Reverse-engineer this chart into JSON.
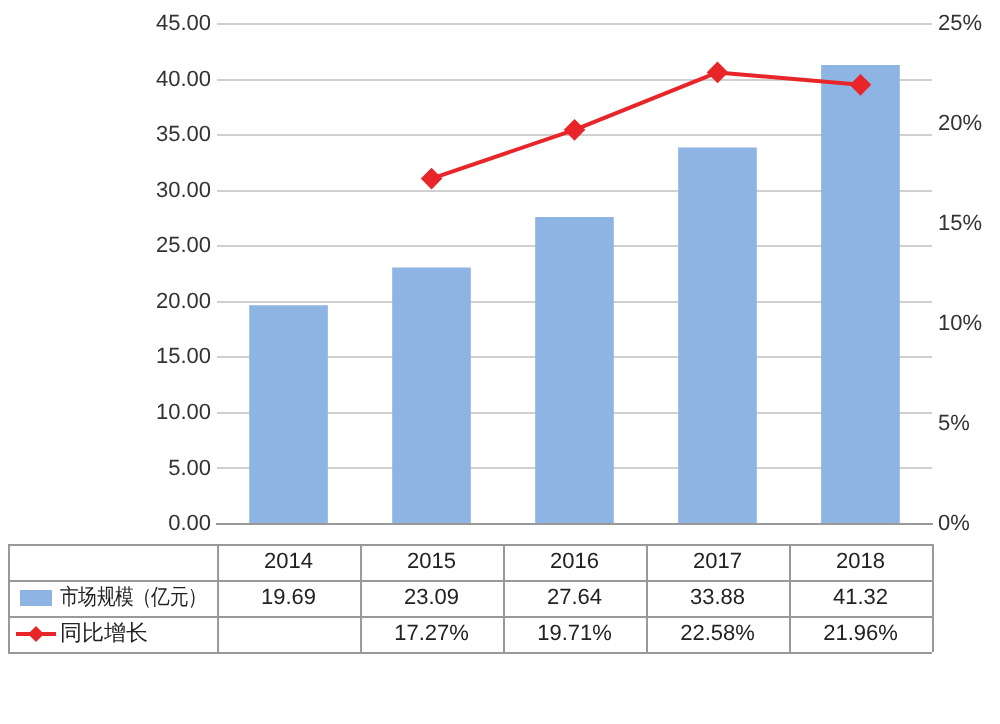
{
  "chart_data": {
    "type": "bar",
    "categories": [
      "2014",
      "2015",
      "2016",
      "2017",
      "2018"
    ],
    "series": [
      {
        "name": "市场规模（亿元）",
        "color": "#8eb4e3",
        "values": [
          19.69,
          23.09,
          27.64,
          33.88,
          41.32
        ],
        "value_labels": [
          "19.69",
          "23.09",
          "27.64",
          "33.88",
          "41.32"
        ]
      },
      {
        "name": "同比增长",
        "type": "line",
        "axis": "y2",
        "color": "#e8262a",
        "values": [
          null,
          17.27,
          19.71,
          22.58,
          21.96
        ],
        "value_labels": [
          null,
          "17.27%",
          "19.71%",
          "22.58%",
          "21.96%"
        ]
      }
    ],
    "ylim": [
      0,
      45
    ],
    "yticks": [
      {
        "value": 0,
        "label": "0.00"
      },
      {
        "value": 5,
        "label": "5.00"
      },
      {
        "value": 10,
        "label": "10.00"
      },
      {
        "value": 15,
        "label": "15.00"
      },
      {
        "value": 20,
        "label": "20.00"
      },
      {
        "value": 25,
        "label": "25.00"
      },
      {
        "value": 30,
        "label": "30.00"
      },
      {
        "value": 35,
        "label": "35.00"
      },
      {
        "value": 40,
        "label": "40.00"
      },
      {
        "value": 45,
        "label": "45.00"
      }
    ],
    "y2lim": [
      0,
      25
    ],
    "y2ticks": [
      {
        "value": 0,
        "label": "0%"
      },
      {
        "value": 5,
        "label": "5%"
      },
      {
        "value": 10,
        "label": "10%"
      },
      {
        "value": 15,
        "label": "15%"
      },
      {
        "value": 20,
        "label": "20%"
      },
      {
        "value": 25,
        "label": "25%"
      }
    ],
    "grid": "y",
    "legend": "bottom",
    "marker": "diamond",
    "line_style": "solid"
  }
}
